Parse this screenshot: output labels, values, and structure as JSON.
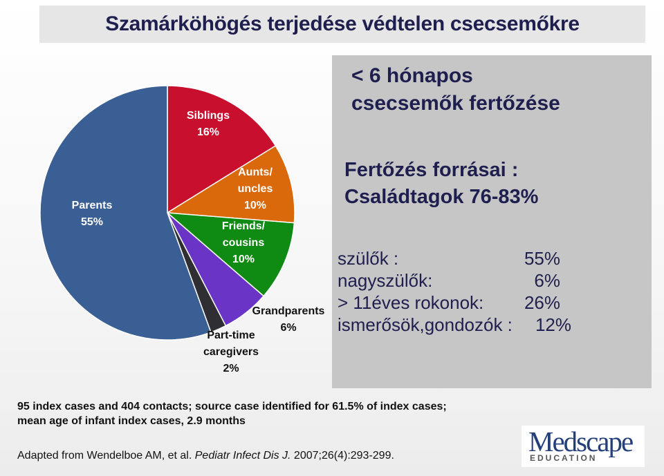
{
  "title": "Szamárköhögés terjedése védtelen csecsemőkre",
  "chart_data": {
    "type": "pie",
    "slices": [
      {
        "name": "Siblings",
        "value": 16,
        "color": "#c8102e",
        "label_lines": [
          "Siblings",
          "16%"
        ]
      },
      {
        "name": "Aunts/uncles",
        "value": 10,
        "color": "#d9690a",
        "label_lines": [
          "Aunts/",
          "uncles",
          "10%"
        ]
      },
      {
        "name": "Friends/cousins",
        "value": 10,
        "color": "#0f8a12",
        "label_lines": [
          "Friends/",
          "cousins",
          "10%"
        ]
      },
      {
        "name": "Grandparents",
        "value": 6,
        "color": "#6a35c6",
        "label_lines": [
          "Grandparents",
          "6%"
        ]
      },
      {
        "name": "Part-time caregivers",
        "value": 2,
        "color": "#2e2e33",
        "label_lines": [
          "Part-time",
          "caregivers",
          "2%"
        ]
      },
      {
        "name": "Parents",
        "value": 55,
        "color": "#3a5f94",
        "label_lines": [
          "Parents",
          "55%"
        ]
      }
    ]
  },
  "panel": {
    "heading_line1": "< 6 hónapos",
    "heading_line2": "csecsemők fertőzése",
    "sources_line1": "Fertőzés forrásai :",
    "sources_line2": "Családtagok 76-83%",
    "rows": [
      {
        "label": "szülők :",
        "value": "55%"
      },
      {
        "label": "nagyszülők:",
        "value": "6%"
      },
      {
        "label": "> 11éves rokonok:",
        "value": "26%"
      },
      {
        "label": "ismerősök,gondozók :",
        "value": "12%"
      }
    ]
  },
  "footnote_line1": "95 index cases and 404 contacts; source case identified for 61.5% of index cases;",
  "footnote_line2": "mean age of infant index cases, 2.9 months",
  "citation_prefix": "Adapted from Wendelboe AM, et al.",
  "citation_journal": "Pediatr Infect Dis J.",
  "citation_suffix": "2007;26(4):293-299.",
  "logo": {
    "word": "Medscape",
    "sub": "EDUCATION"
  }
}
